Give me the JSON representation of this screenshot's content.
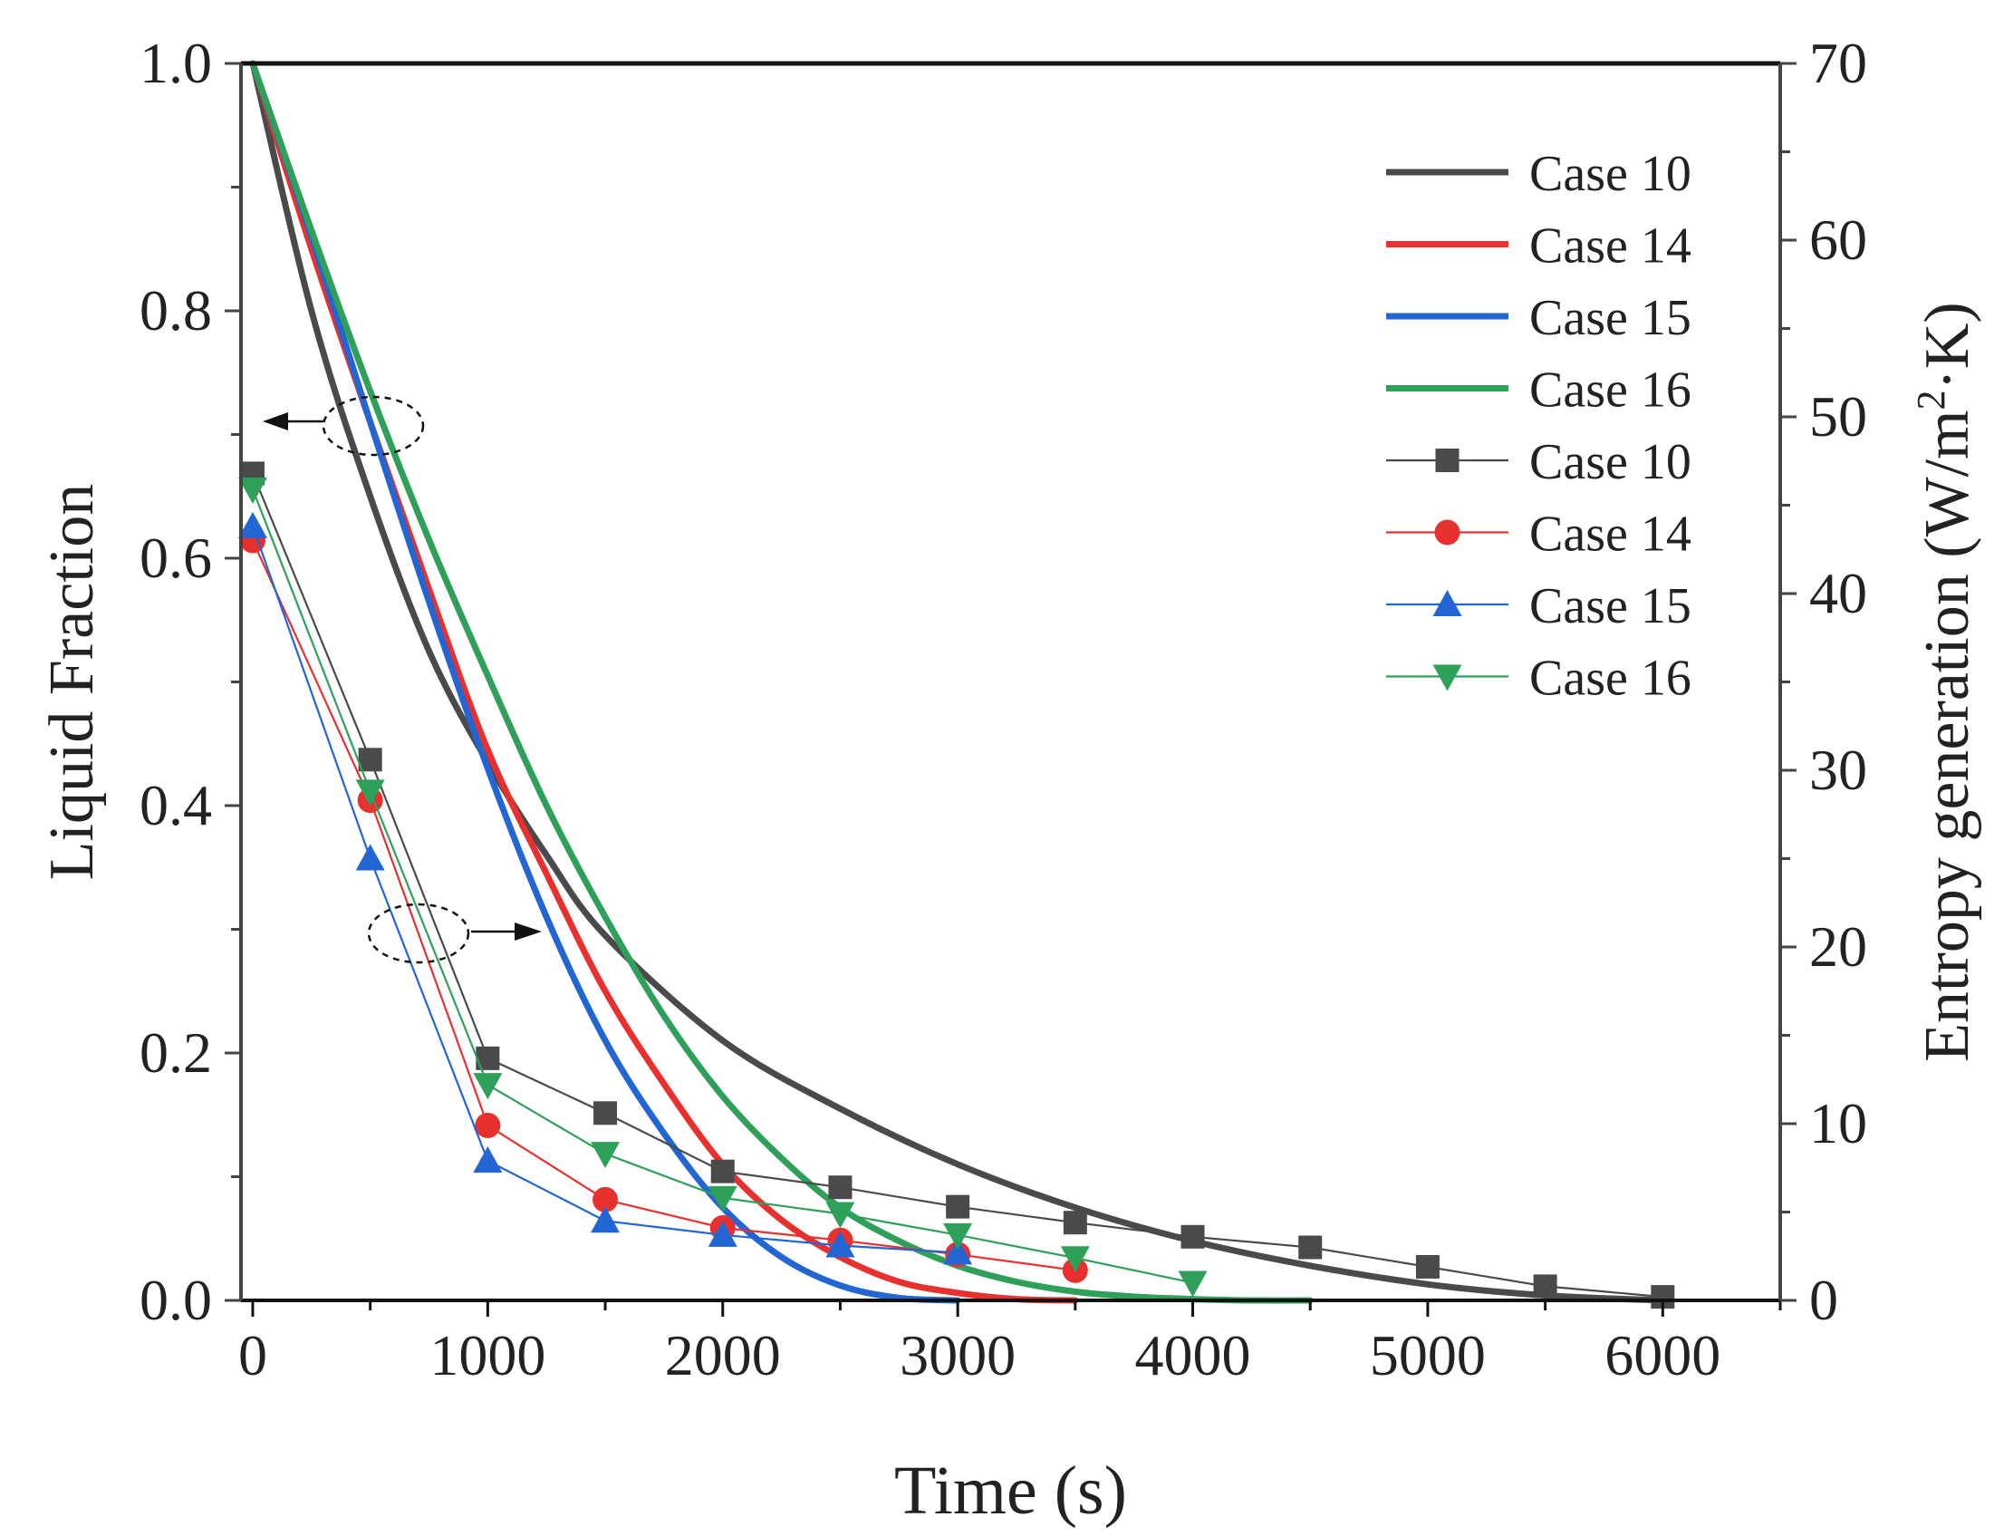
{
  "chart_data": {
    "type": "line",
    "title": "",
    "xlabel": "Time (s)",
    "ylabel_left": "Liquid Fraction",
    "ylabel_right_parts": [
      "Entropy generation (W/m",
      "2",
      "·K)"
    ],
    "xlim": [
      -50,
      6500
    ],
    "ylim_left": [
      0.0,
      1.0
    ],
    "ylim_right": [
      0,
      70
    ],
    "x_ticks": [
      "0",
      "1000",
      "2000",
      "3000",
      "4000",
      "5000",
      "6000"
    ],
    "y_left_ticks": [
      "0.0",
      "0.2",
      "0.4",
      "0.6",
      "0.8",
      "1.0"
    ],
    "y_right_ticks": [
      "0",
      "10",
      "20",
      "30",
      "40",
      "50",
      "60",
      "70"
    ],
    "legend_position": "top-right",
    "liquid_fraction_series": [
      {
        "name": "Case 10",
        "color": "#4a4a4a",
        "x": [
          0,
          250,
          500,
          750,
          1000,
          1250,
          1500,
          2000,
          2500,
          3000,
          3500,
          4000,
          4500,
          5000,
          5500,
          6000
        ],
        "y": [
          1.0,
          0.8,
          0.65,
          0.525,
          0.435,
          0.36,
          0.295,
          0.21,
          0.155,
          0.11,
          0.075,
          0.048,
          0.028,
          0.013,
          0.004,
          0.0
        ]
      },
      {
        "name": "Case 14",
        "color": "#e8312f",
        "x": [
          0,
          250,
          500,
          750,
          1000,
          1250,
          1500,
          1750,
          2000,
          2250,
          2500,
          2750,
          3000,
          3250,
          3500
        ],
        "y": [
          1.0,
          0.85,
          0.71,
          0.575,
          0.445,
          0.345,
          0.25,
          0.175,
          0.11,
          0.065,
          0.035,
          0.015,
          0.006,
          0.001,
          0.0
        ]
      },
      {
        "name": "Case 15",
        "color": "#2266d4",
        "x": [
          0,
          250,
          500,
          750,
          1000,
          1250,
          1500,
          1750,
          2000,
          2250,
          2500,
          2750,
          3000
        ],
        "y": [
          1.0,
          0.86,
          0.71,
          0.565,
          0.43,
          0.31,
          0.21,
          0.135,
          0.075,
          0.035,
          0.012,
          0.002,
          0.0
        ]
      },
      {
        "name": "Case 16",
        "color": "#2fa05a",
        "x": [
          0,
          250,
          500,
          750,
          1000,
          1250,
          1500,
          1750,
          2000,
          2250,
          2500,
          2750,
          3000,
          3250,
          3500,
          3750,
          4000,
          4250,
          4500
        ],
        "y": [
          1.0,
          0.865,
          0.735,
          0.615,
          0.505,
          0.4,
          0.31,
          0.23,
          0.165,
          0.115,
          0.075,
          0.048,
          0.028,
          0.015,
          0.007,
          0.003,
          0.001,
          0.0,
          0.0
        ]
      }
    ],
    "entropy_series": [
      {
        "name": "Case 10",
        "color": "#4a4a4a",
        "marker": "square",
        "x": [
          0,
          500,
          1000,
          1500,
          2000,
          2500,
          3000,
          3500,
          4000,
          4500,
          5000,
          5500,
          6000
        ],
        "y": [
          46.8,
          30.6,
          13.7,
          10.6,
          7.3,
          6.4,
          5.3,
          4.4,
          3.6,
          3.0,
          1.9,
          0.8,
          0.2
        ]
      },
      {
        "name": "Case 14",
        "color": "#e8312f",
        "marker": "circle",
        "x": [
          0,
          500,
          1000,
          1500,
          2000,
          2500,
          3000,
          3500
        ],
        "y": [
          43.0,
          28.3,
          9.9,
          5.7,
          4.1,
          3.4,
          2.6,
          1.7
        ]
      },
      {
        "name": "Case 15",
        "color": "#2266d4",
        "marker": "triangle-up",
        "x": [
          0,
          500,
          1000,
          1500,
          2000,
          2500,
          3000
        ],
        "y": [
          43.8,
          25.0,
          7.9,
          4.5,
          3.7,
          3.1,
          2.7
        ]
      },
      {
        "name": "Case 16",
        "color": "#2fa05a",
        "marker": "triangle-down",
        "x": [
          0,
          500,
          1000,
          1500,
          2000,
          2500,
          3000,
          3500,
          4000
        ],
        "y": [
          45.9,
          28.8,
          12.2,
          8.3,
          5.8,
          4.9,
          3.7,
          2.4,
          1.0
        ]
      }
    ],
    "annotations": [
      {
        "type": "dashed-ellipse-with-arrow",
        "target_axis": "left",
        "direction": "left"
      },
      {
        "type": "dashed-ellipse-with-arrow",
        "target_axis": "right",
        "direction": "right"
      }
    ]
  }
}
